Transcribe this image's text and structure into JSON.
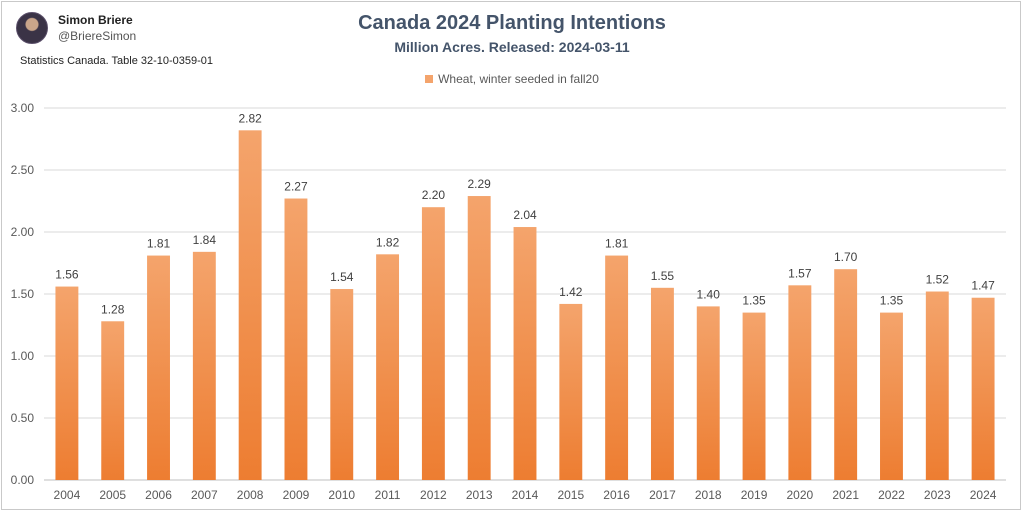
{
  "author": {
    "name": "Simon Briere",
    "handle": "@BriereSimon",
    "avatar_icon": "profile-photo"
  },
  "source": "Statistics Canada. Table 32-10-0359-01",
  "colors": {
    "bar_top": "#f4a46c",
    "bar_bottom": "#ed7d31",
    "title": "#44546a",
    "grid": "#d9d9d9"
  },
  "chart_data": {
    "type": "bar",
    "title": "Canada 2024 Planting Intentions",
    "subtitle": "Million Acres. Released: 2024-03-11",
    "series": [
      {
        "name": "Wheat, winter seeded in fall20",
        "values": [
          1.56,
          1.28,
          1.81,
          1.84,
          2.82,
          2.27,
          1.54,
          1.82,
          2.2,
          2.29,
          2.04,
          1.42,
          1.81,
          1.55,
          1.4,
          1.35,
          1.57,
          1.7,
          1.35,
          1.52,
          1.47
        ],
        "data_labels": [
          "1.56",
          "1.28",
          "1.81",
          "1.84",
          "2.82",
          "2.27",
          "1.54",
          "1.82",
          "2.20",
          "2.29",
          "2.04",
          "1.42",
          "1.81",
          "1.55",
          "1.40",
          "1.35",
          "1.57",
          "1.70",
          "1.35",
          "1.52",
          "1.47"
        ]
      }
    ],
    "categories": [
      "2004",
      "2005",
      "2006",
      "2007",
      "2008",
      "2009",
      "2010",
      "2011",
      "2012",
      "2013",
      "2014",
      "2015",
      "2016",
      "2017",
      "2018",
      "2019",
      "2020",
      "2021",
      "2022",
      "2023",
      "2024"
    ],
    "ylim": [
      0,
      3
    ],
    "y_ticks": [
      "0.00",
      "0.50",
      "1.00",
      "1.50",
      "2.00",
      "2.50",
      "3.00"
    ],
    "grid": true,
    "legend_position": "top-center",
    "xlabel": "",
    "ylabel": ""
  }
}
